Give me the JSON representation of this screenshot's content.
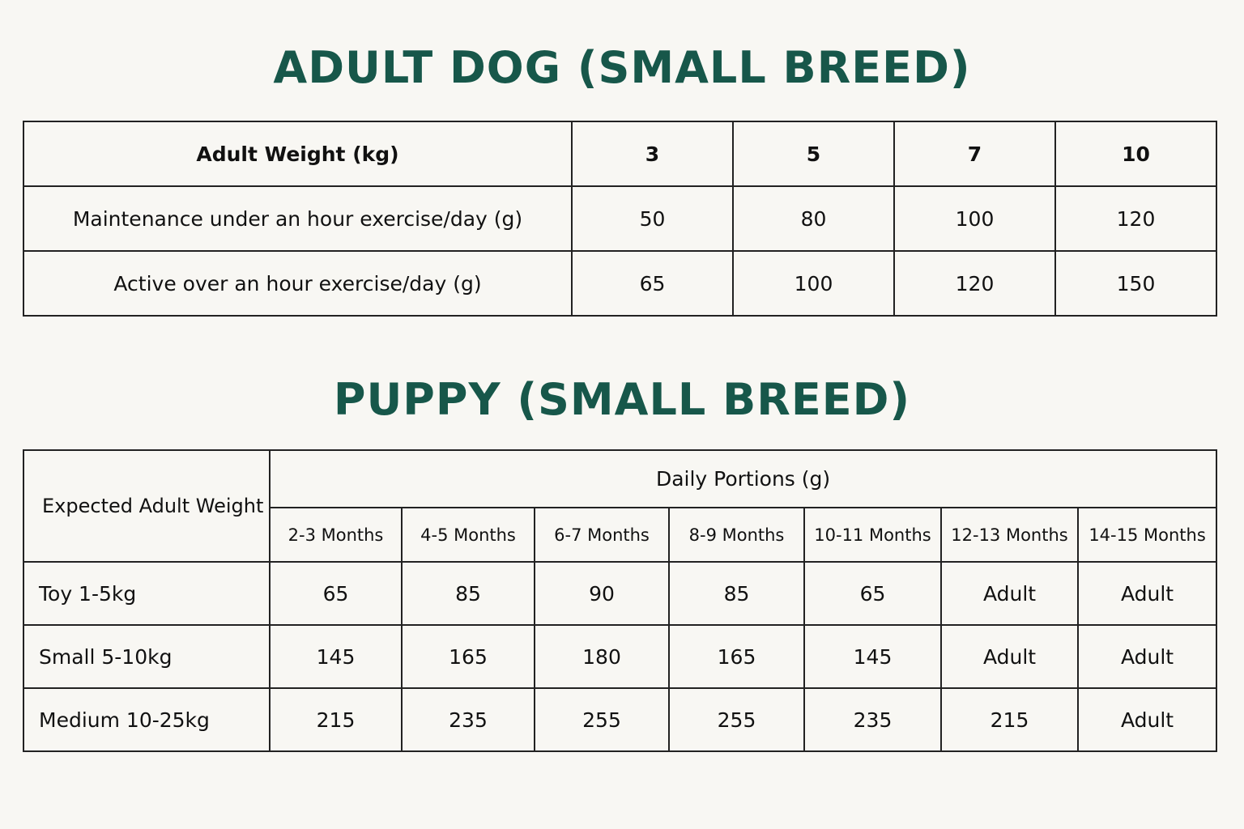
{
  "adult": {
    "title": "ADULT DOG (SMALL BREED)",
    "header": [
      "Adult Weight (kg)",
      3,
      5,
      7,
      10
    ],
    "rows": [
      [
        "Maintenance under an hour exercise/day (g)",
        50,
        80,
        100,
        120
      ],
      [
        "Active over an hour exercise/day (g)",
        65,
        100,
        120,
        150
      ]
    ]
  },
  "puppy": {
    "title": "PUPPY (SMALL BREED)",
    "row_header": "Expected Adult Weight",
    "group_header": "Daily Portions (g)",
    "columns": [
      "2-3 Months",
      "4-5 Months",
      "6-7 Months",
      "8-9 Months",
      "10-11 Months",
      "12-13 Months",
      "14-15 Months"
    ],
    "rows": [
      [
        "Toy 1-5kg",
        65,
        85,
        90,
        85,
        65,
        "Adult",
        "Adult"
      ],
      [
        "Small 5-10kg",
        145,
        165,
        180,
        165,
        145,
        "Adult",
        "Adult"
      ],
      [
        "Medium 10-25kg",
        215,
        235,
        255,
        255,
        235,
        215,
        "Adult"
      ]
    ]
  }
}
